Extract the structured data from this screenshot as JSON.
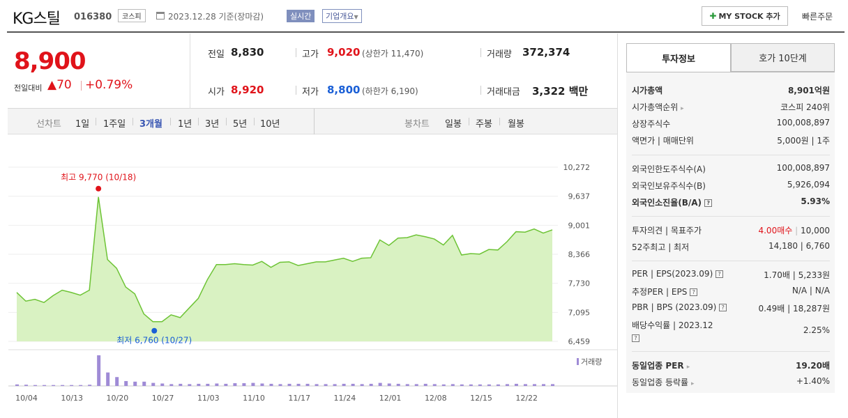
{
  "header": {
    "name": "KG스틸",
    "code": "016380",
    "market": "코스피",
    "date": "2023.12.28",
    "date_suffix": "기준(장마감)",
    "realtime": "실시간",
    "overview": "기업개요",
    "mystock": "MY STOCK 추가",
    "quick": "빠른주문"
  },
  "price": {
    "current": "8,900",
    "change_label": "전일대비",
    "change_amount": "70",
    "change_pct": "+0.79%"
  },
  "quote": {
    "prev_label": "전일",
    "prev": "8,830",
    "high_label": "고가",
    "high": "9,020",
    "upper_label": "(상한가",
    "upper": "11,470",
    "upper_close": ")",
    "volume_label": "거래량",
    "volume": "372,374",
    "open_label": "시가",
    "open": "8,920",
    "low_label": "저가",
    "low": "8,800",
    "lower_label": "(하한가",
    "lower": "6,190",
    "lower_close": ")",
    "amount_label": "거래대금",
    "amount": "3,322",
    "amount_unit": "백만"
  },
  "periods": {
    "line_label": "선차트",
    "items": [
      "1일",
      "1주일",
      "3개월",
      "1년",
      "3년",
      "5년",
      "10년"
    ],
    "selected": "3개월",
    "candle_label": "봉차트",
    "candle_items": [
      "일봉",
      "주봉",
      "월봉"
    ]
  },
  "chart_data": {
    "type": "area",
    "y_ticks": [
      "10,272",
      "9,637",
      "9,001",
      "8,366",
      "7,730",
      "7,095",
      "6,459"
    ],
    "ylim": [
      6459,
      10272
    ],
    "x_ticks": [
      "10/04",
      "10/13",
      "10/20",
      "10/27",
      "11/03",
      "11/10",
      "11/17",
      "11/24",
      "12/01",
      "12/08",
      "12/15",
      "12/22"
    ],
    "high_label": "최고 9,770 (10/18)",
    "low_label": "최저 6,760 (10/27)",
    "volume_label": "거래량",
    "series": [
      {
        "values": [
          7530,
          7340,
          7380,
          7310,
          7460,
          7580,
          7530,
          7470,
          7580,
          9620,
          8250,
          8060,
          7650,
          7500,
          7060,
          6890,
          6890,
          7040,
          6980,
          7190,
          7400,
          7810,
          8140,
          8140,
          8160,
          8140,
          8130,
          8210,
          8080,
          8190,
          8200,
          8120,
          8160,
          8200,
          8200,
          8240,
          8280,
          8210,
          8280,
          8290,
          8680,
          8560,
          8720,
          8730,
          8790,
          8750,
          8700,
          8570,
          8780,
          8350,
          8380,
          8370,
          8470,
          8460,
          8640,
          8860,
          8850,
          8920,
          8830,
          8900
        ]
      }
    ],
    "volumes": [
      5,
      4,
      3,
      3,
      3,
      3,
      3,
      3,
      4,
      100,
      44,
      29,
      16,
      14,
      14,
      10,
      8,
      6,
      7,
      6,
      7,
      7,
      8,
      7,
      9,
      9,
      10,
      8,
      7,
      6,
      7,
      7,
      7,
      6,
      6,
      6,
      7,
      7,
      6,
      7,
      10,
      8,
      7,
      6,
      6,
      7,
      6,
      5,
      6,
      5,
      5,
      5,
      5,
      5,
      6,
      7,
      6,
      6,
      6,
      6
    ]
  },
  "invest": {
    "tab1": "투자정보",
    "tab2": "호가 10단계",
    "rows": [
      {
        "l": "시가총액",
        "v": "8,901억원",
        "bold": true
      },
      {
        "l": "시가총액순위",
        "v": "코스피 240위"
      },
      {
        "l": "상장주식수",
        "v": "100,008,897"
      },
      {
        "l": "액면가 | 매매단위",
        "v": "5,000원 | 1주"
      },
      {
        "l": "외국인한도주식수(A)",
        "v": "100,008,897"
      },
      {
        "l": "외국인보유주식수(B)",
        "v": "5,926,094"
      },
      {
        "l": "외국인소진율(B/A)",
        "v": "5.93%",
        "bold": true
      },
      {
        "l": "투자의견 | 목표주가",
        "v1": "4.00매수",
        "v2": "10,000"
      },
      {
        "l": "52주최고 | 최저",
        "v": "14,180 | 6,760"
      },
      {
        "l": "PER | EPS(2023.09)",
        "v": "1.70배 | 5,233원"
      },
      {
        "l": "추정PER | EPS",
        "v": "N/A | N/A"
      },
      {
        "l": "PBR | BPS (2023.09)",
        "v": "0.49배 | 18,287원"
      },
      {
        "l": "배당수익률 | 2023.12",
        "v": "2.25%"
      },
      {
        "l": "동일업종 PER",
        "v": "19.20배",
        "bold": true
      },
      {
        "l": "동일업종 등락률",
        "v": "+1.40%"
      }
    ]
  },
  "colors": {
    "up": "#e0131a",
    "down": "#1a5fd6",
    "line": "#6dc335",
    "fill": "#d9f2c2",
    "volume": "#9f8bd6"
  }
}
